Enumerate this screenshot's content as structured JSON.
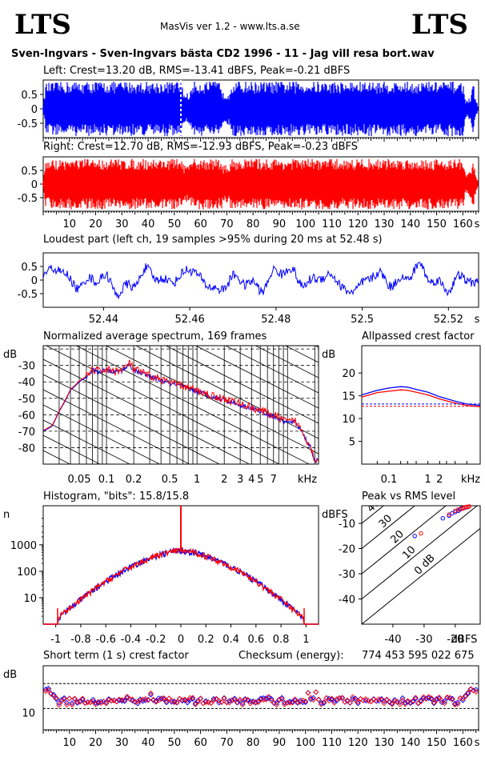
{
  "header": {
    "logo_left": "LTS",
    "logo_right": "LTS",
    "app": "MasVis ver 1.2 - www.lts.a.se",
    "file": "Sven-Ingvars - Sven-Ingvars bästa CD2 1996 - 11 - Jag vill resa bort.wav"
  },
  "colors": {
    "left": "#0000ff",
    "right": "#ff0000"
  },
  "chart_data": [
    {
      "type": "area",
      "name": "waveform-left",
      "title": "Left: Crest=13.20 dB, RMS=-13.41 dBFS, Peak=-0.21 dBFS",
      "yticks": [
        "0.5",
        "0",
        "-0.5"
      ],
      "ylim": [
        -1,
        1
      ],
      "xlim": [
        0,
        166
      ],
      "envelope": [
        [
          0,
          0.15
        ],
        [
          1,
          0.9
        ],
        [
          10,
          0.95
        ],
        [
          53,
          0.95
        ],
        [
          53.5,
          0.55
        ],
        [
          56,
          0.55
        ],
        [
          57,
          0.95
        ],
        [
          68,
          0.95
        ],
        [
          68.5,
          0.55
        ],
        [
          71,
          0.6
        ],
        [
          71.5,
          0.95
        ],
        [
          160,
          0.95
        ],
        [
          161,
          0.3
        ],
        [
          163,
          0.4
        ],
        [
          164,
          0.9
        ],
        [
          165,
          0.3
        ],
        [
          166,
          0.05
        ]
      ],
      "marker_x": 52.48
    },
    {
      "type": "area",
      "name": "waveform-right",
      "title": "Right: Crest=12.70 dB, RMS=-12.93 dBFS, Peak=-0.23 dBFS",
      "yticks": [
        "0.5",
        "0",
        "-0.5"
      ],
      "ylim": [
        -1,
        1
      ],
      "xlim": [
        0,
        166
      ],
      "envelope": [
        [
          0,
          0.15
        ],
        [
          1,
          0.88
        ],
        [
          10,
          0.93
        ],
        [
          53,
          0.93
        ],
        [
          53.5,
          0.7
        ],
        [
          56,
          0.7
        ],
        [
          57,
          0.93
        ],
        [
          68,
          0.93
        ],
        [
          68.5,
          0.7
        ],
        [
          71,
          0.7
        ],
        [
          71.5,
          0.93
        ],
        [
          160,
          0.93
        ],
        [
          161,
          0.35
        ],
        [
          163,
          0.5
        ],
        [
          164,
          0.9
        ],
        [
          165,
          0.3
        ],
        [
          166,
          0.05
        ]
      ],
      "xticks": [
        "10",
        "20",
        "30",
        "40",
        "50",
        "60",
        "70",
        "80",
        "90",
        "100",
        "110",
        "120",
        "130",
        "140",
        "150",
        "160"
      ],
      "xunit": "s"
    },
    {
      "type": "line",
      "name": "loudest-part",
      "title": "Loudest part (left  ch, 19 samples >95% during 20 ms at 52.48 s)",
      "yticks": [
        "0.5",
        "0",
        "-0.5"
      ],
      "ylim": [
        -1,
        1
      ],
      "xlim": [
        52.426,
        52.527
      ],
      "xticks": [
        "52.44",
        "52.46",
        "52.48",
        "52.5",
        "52.52"
      ],
      "xunit": "s"
    },
    {
      "type": "line",
      "name": "spectrum",
      "title": "Normalized average spectrum, 169 frames",
      "ylabel": "dB",
      "yticks": [
        "-30",
        "-40",
        "-50",
        "-60",
        "-70",
        "-80"
      ],
      "ylim": [
        -90,
        -18
      ],
      "xlim": [
        0.02,
        22
      ],
      "xscale": "log",
      "xticks": [
        "0.05",
        "0.1",
        "0.2",
        "0.5",
        "1",
        "2",
        "3",
        "4",
        "5",
        "7"
      ],
      "xunit": "kHz",
      "points_db": [
        [
          0.02,
          -70
        ],
        [
          0.025,
          -67
        ],
        [
          0.03,
          -58
        ],
        [
          0.04,
          -45
        ],
        [
          0.05,
          -40
        ],
        [
          0.06,
          -37
        ],
        [
          0.07,
          -33
        ],
        [
          0.08,
          -34
        ],
        [
          0.1,
          -33
        ],
        [
          0.12,
          -34
        ],
        [
          0.15,
          -33
        ],
        [
          0.18,
          -29
        ],
        [
          0.2,
          -33
        ],
        [
          0.3,
          -37
        ],
        [
          0.5,
          -41
        ],
        [
          0.7,
          -43
        ],
        [
          1,
          -46
        ],
        [
          1.5,
          -49
        ],
        [
          2,
          -51
        ],
        [
          3,
          -54
        ],
        [
          4,
          -56
        ],
        [
          5,
          -58
        ],
        [
          7,
          -61
        ],
        [
          10,
          -65
        ],
        [
          12,
          -64
        ],
        [
          14,
          -69
        ],
        [
          16,
          -75
        ],
        [
          18,
          -80
        ],
        [
          20,
          -88
        ]
      ]
    },
    {
      "type": "line",
      "name": "allpass-crest",
      "title": "Allpassed crest factor",
      "ylabel": "dB",
      "yticks": [
        "20",
        "15",
        "10",
        "5"
      ],
      "ylim": [
        0,
        26
      ],
      "xlim": [
        0.02,
        22
      ],
      "xscale": "log",
      "xticks": [
        "0.1",
        "1",
        "2"
      ],
      "xunit": "kHz",
      "series": [
        {
          "values_xy": [
            [
              0.02,
              15.2
            ],
            [
              0.05,
              16.2
            ],
            [
              0.1,
              16.7
            ],
            [
              0.2,
              17.0
            ],
            [
              0.3,
              16.9
            ],
            [
              0.5,
              16.4
            ],
            [
              1,
              15.8
            ],
            [
              2,
              14.8
            ],
            [
              5,
              13.8
            ],
            [
              10,
              13.2
            ],
            [
              22,
              12.9
            ]
          ]
        },
        {
          "values_xy": [
            [
              0.02,
              14.7
            ],
            [
              0.05,
              15.7
            ],
            [
              0.1,
              16.0
            ],
            [
              0.2,
              16.3
            ],
            [
              0.3,
              16.2
            ],
            [
              0.5,
              15.8
            ],
            [
              1,
              15.2
            ],
            [
              2,
              14.3
            ],
            [
              5,
              13.4
            ],
            [
              10,
              12.9
            ],
            [
              22,
              12.6
            ]
          ]
        }
      ],
      "ref_left": 13.2,
      "ref_right": 12.7
    },
    {
      "type": "line",
      "name": "histogram",
      "title": "Histogram, \"bits\": 15.8/15.8",
      "ylabel": "n",
      "yticks": [
        "1000",
        "100",
        "10"
      ],
      "yscale": "log",
      "ylim": [
        1,
        30000
      ],
      "xlim": [
        -1.1,
        1.1
      ],
      "xticks": [
        "-1",
        "-0.8",
        "-0.6",
        "-0.4",
        "-0.2",
        "0",
        "0.2",
        "0.4",
        "0.6",
        "0.8",
        "1"
      ],
      "peak": 30000,
      "base": 600
    },
    {
      "type": "scatter",
      "name": "peak-vs-rms",
      "title": "Peak vs RMS level",
      "ylabel": "dBFS",
      "yticks": [
        "-10",
        "-20",
        "-30",
        "-40"
      ],
      "xticks": [
        "-40",
        "-30",
        "-20"
      ],
      "xunit": "dBFS",
      "xlim": [
        -50,
        -12
      ],
      "ylim": [
        -50,
        -3
      ],
      "diagonal_labels": [
        "40",
        "30",
        "20",
        "10",
        "0 dB"
      ],
      "series": [
        {
          "points": [
            [
              -33,
              -15
            ],
            [
              -24,
              -8
            ],
            [
              -22,
              -7
            ],
            [
              -21,
              -6
            ],
            [
              -20,
              -5.5
            ],
            [
              -19,
              -5
            ],
            [
              -18.5,
              -4.5
            ],
            [
              -18,
              -4
            ],
            [
              -17.5,
              -4
            ],
            [
              -17,
              -3.8
            ],
            [
              -16.5,
              -3.6
            ],
            [
              -16,
              -3.5
            ]
          ]
        },
        {
          "points": [
            [
              -31,
              -14
            ],
            [
              -22,
              -6.5
            ],
            [
              -20,
              -5
            ],
            [
              -19,
              -4.5
            ],
            [
              -18,
              -4.2
            ],
            [
              -17.5,
              -4
            ],
            [
              -17,
              -3.7
            ],
            [
              -16.5,
              -3.5
            ],
            [
              -16,
              -3.4
            ],
            [
              -15.5,
              -3.3
            ]
          ]
        }
      ]
    },
    {
      "type": "scatter",
      "name": "short-term-crest",
      "title": "Short term (1 s) crest factor",
      "checksum_label": "Checksum (energy):",
      "checksum": "774 453 595 022 675",
      "ylabel": "dB",
      "yticks": [
        "10"
      ],
      "ylim": [
        4,
        22
      ],
      "xlim": [
        0,
        166
      ],
      "xticks": [
        "10",
        "20",
        "30",
        "40",
        "50",
        "60",
        "70",
        "80",
        "90",
        "100",
        "110",
        "120",
        "130",
        "140",
        "150",
        "160"
      ],
      "xunit": "s",
      "ref_lines": [
        10,
        17
      ]
    }
  ]
}
